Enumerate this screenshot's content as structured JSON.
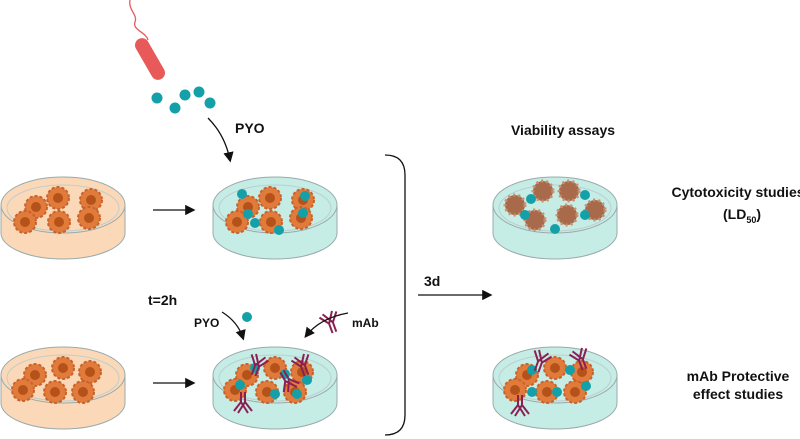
{
  "labels": {
    "pyo_top": "PYO",
    "time": "t=2h",
    "pyo_small": "PYO",
    "mab": "mAb",
    "duration": "3d",
    "viability": "Viability assays",
    "cytotoxicity": "Cytotoxicity studies",
    "ld_prefix": "(LD",
    "ld_sub": "50",
    "ld_suffix": ")",
    "mab_protective_1": "mAb Protective",
    "mab_protective_2": "effect studies"
  },
  "colors": {
    "medium_untreated": "#fbd9b8",
    "medium_treated": "#c6ece6",
    "cell": "#e07b3c",
    "cell_nucleus": "#b5521a",
    "dead_cell": "#a86a4a",
    "pyocyanin": "#13a0a8",
    "bacterium": "#e8595a",
    "antibody": "#8a1f52"
  }
}
